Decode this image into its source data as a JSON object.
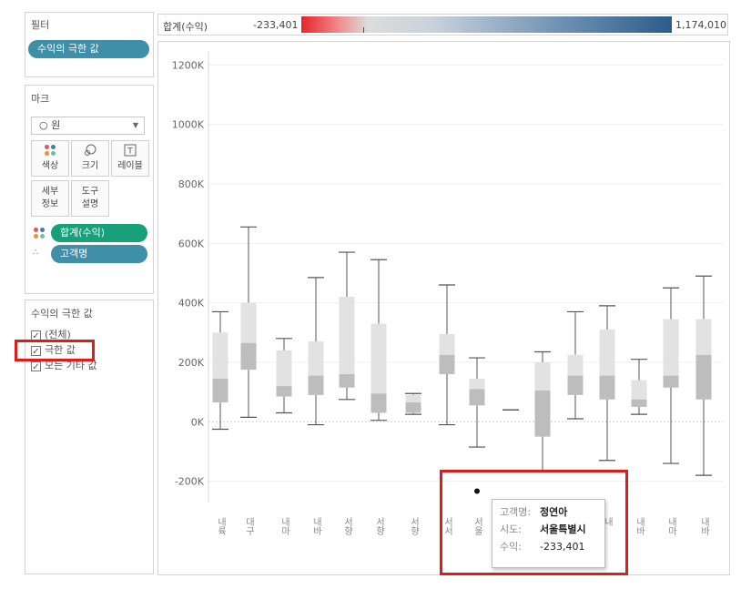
{
  "filters": {
    "title": "필터",
    "pill": "수익의 극한 값"
  },
  "marks": {
    "title": "마크",
    "type_select": "○ 원",
    "buttons": [
      {
        "name": "color-button",
        "icon": "color-dots-icon",
        "label": "색상"
      },
      {
        "name": "size-button",
        "icon": "size-icon",
        "label": "크기"
      },
      {
        "name": "label-button",
        "icon": "text-icon",
        "label": "레이블"
      },
      {
        "name": "detail-button",
        "icon": "",
        "label": "세부\n정보"
      },
      {
        "name": "tooltip-button",
        "icon": "",
        "label": "도구\n설명"
      }
    ],
    "color_pill": "합계(수익)",
    "detail_pill": "고객명"
  },
  "filter_card": {
    "title": "수익의 극한 값",
    "options": [
      {
        "label": "(전체)",
        "checked": true
      },
      {
        "label": "극한 값",
        "checked": true
      },
      {
        "label": "모든 기타 값",
        "checked": true
      }
    ]
  },
  "legend": {
    "title": "합계(수익)",
    "min_label": "-233,401",
    "max_label": "1,174,010",
    "colors": {
      "negative": "#e8242a",
      "mid": "#dcdcdc",
      "positive": "#2b5c8a"
    }
  },
  "colors": {
    "pill_teal": "#3f8fa8",
    "pill_green": "#17a07a",
    "highlight": "#e01b1b",
    "box_upper": "#e2e2e2",
    "box_lower": "#bdbdbd",
    "whisker": "#555555"
  },
  "chart_data": {
    "type": "boxplot",
    "ylim": [
      -300000,
      1300000
    ],
    "yticks": [
      -200000,
      0,
      200000,
      400000,
      600000,
      800000,
      1000000,
      1200000
    ],
    "ytick_labels": [
      "-200K",
      "0K",
      "200K",
      "400K",
      "600K",
      "800K",
      "1000K",
      "1200K"
    ],
    "categories": [
      "내륙",
      "대구",
      "내마",
      "내바",
      "서향",
      "서향",
      "서향",
      "서서",
      "서울",
      "",
      "내",
      "내",
      "내",
      "내바",
      "내마",
      "내바"
    ],
    "boxes": [
      {
        "min": -25000,
        "q1": 65000,
        "median": 145000,
        "q3": 300000,
        "max": 370000
      },
      {
        "min": 15000,
        "q1": 175000,
        "median": 265000,
        "q3": 400000,
        "max": 655000
      },
      {
        "min": 30000,
        "q1": 85000,
        "median": 120000,
        "q3": 240000,
        "max": 280000
      },
      {
        "min": -10000,
        "q1": 90000,
        "median": 155000,
        "q3": 270000,
        "max": 485000
      },
      {
        "min": 75000,
        "q1": 115000,
        "median": 160000,
        "q3": 420000,
        "max": 570000
      },
      {
        "min": 5000,
        "q1": 30000,
        "median": 95000,
        "q3": 330000,
        "max": 545000
      },
      {
        "min": 25000,
        "q1": 30000,
        "median": 65000,
        "q3": 90000,
        "max": 95000
      },
      {
        "min": -10000,
        "q1": 160000,
        "median": 225000,
        "q3": 295000,
        "max": 460000
      },
      {
        "min": -85000,
        "q1": 55000,
        "median": 110000,
        "q3": 145000,
        "max": 215000
      },
      {
        "min": 40000,
        "q1": 40000,
        "median": 40000,
        "q3": 40000,
        "max": 40000
      },
      {
        "min": -165000,
        "q1": -50000,
        "median": 105000,
        "q3": 200000,
        "max": 235000
      },
      {
        "min": 10000,
        "q1": 90000,
        "median": 155000,
        "q3": 225000,
        "max": 370000
      },
      {
        "min": -130000,
        "q1": 75000,
        "median": 155000,
        "q3": 310000,
        "max": 390000
      },
      {
        "min": 25000,
        "q1": 50000,
        "median": 75000,
        "q3": 140000,
        "max": 210000
      },
      {
        "min": -140000,
        "q1": 115000,
        "median": 155000,
        "q3": 345000,
        "max": 450000
      },
      {
        "min": -180000,
        "q1": 75000,
        "median": 225000,
        "q3": 345000,
        "max": 490000
      }
    ],
    "outliers": [
      {
        "category_index": 8,
        "value": -233401
      }
    ]
  },
  "tooltip": {
    "rows": [
      {
        "key": "고객명:",
        "value": "정연아"
      },
      {
        "key": "시도:",
        "value": "서울특별시"
      },
      {
        "key": "수익:",
        "value": "-233,401"
      }
    ]
  }
}
